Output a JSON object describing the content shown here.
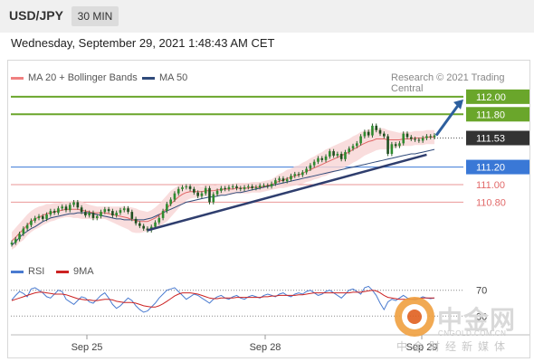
{
  "header": {
    "symbol": "USD/JPY",
    "timeframe": "30 MIN"
  },
  "datetime": "Wednesday, September 29, 2021 1:48:43 AM CET",
  "legend": {
    "ma20": "MA 20 + Bollinger Bands",
    "ma50": "MA 50",
    "credit": "Research © 2021 Trading Central"
  },
  "colors": {
    "green": "#6aa62b",
    "blue": "#3a78d6",
    "red": "#e26a6a",
    "dark": "#333333",
    "ma20": "#e06666",
    "ma50": "#2f4a7a",
    "band": "#f7d4d4",
    "rsi": "#4a7bd0",
    "rsi_ma": "#cc2222"
  },
  "watermark": {
    "brand": "中金网",
    "url": "CNGOLD.COM.CN",
    "sub": "中金财经新媒体"
  },
  "chart_data": [
    {
      "type": "line",
      "title": "",
      "y_range": [
        110.3,
        112.05
      ],
      "x_labels": [
        "Sep 25",
        "Sep 28",
        "Sep 29"
      ],
      "levels": [
        {
          "label": "112.00",
          "value": 112.0,
          "color": "green",
          "style": "box"
        },
        {
          "label": "111.80",
          "value": 111.8,
          "color": "green",
          "style": "box"
        },
        {
          "label": "111.53",
          "value": 111.53,
          "color": "dark",
          "style": "box"
        },
        {
          "label": "111.20",
          "value": 111.2,
          "color": "blue",
          "style": "box"
        },
        {
          "label": "111.00",
          "value": 111.0,
          "color": "red",
          "style": "text"
        },
        {
          "label": "110.80",
          "value": 110.8,
          "color": "red",
          "style": "text"
        }
      ],
      "trendline": {
        "from_index": 35,
        "from_value": 110.48,
        "to_index": 107,
        "to_value": 111.34
      },
      "forecast_arrow": {
        "from_value": 111.56,
        "to_value": 112.0
      },
      "series": [
        {
          "name": "Price",
          "values": [
            110.34,
            110.38,
            110.44,
            110.5,
            110.54,
            110.59,
            110.62,
            110.64,
            110.61,
            110.66,
            110.7,
            110.68,
            110.73,
            110.75,
            110.71,
            110.77,
            110.8,
            110.74,
            110.69,
            110.65,
            110.68,
            110.62,
            110.64,
            110.69,
            110.72,
            110.7,
            110.65,
            110.68,
            110.71,
            110.73,
            110.69,
            110.61,
            110.56,
            110.53,
            110.5,
            110.48,
            110.52,
            110.57,
            110.62,
            110.7,
            110.78,
            110.83,
            110.9,
            110.95,
            110.97,
            110.98,
            110.95,
            110.91,
            110.87,
            110.9,
            110.96,
            110.8,
            110.89,
            110.93,
            110.96,
            110.95,
            110.97,
            110.98,
            110.96,
            110.95,
            110.97,
            110.98,
            110.96,
            110.97,
            110.99,
            110.99,
            110.98,
            111.01,
            111.05,
            111.07,
            111.04,
            111.06,
            111.1,
            111.12,
            111.11,
            111.14,
            111.18,
            111.22,
            111.26,
            111.3,
            111.28,
            111.32,
            111.38,
            111.33,
            111.35,
            111.29,
            111.37,
            111.41,
            111.44,
            111.47,
            111.55,
            111.6,
            111.56,
            111.67,
            111.62,
            111.58,
            111.55,
            111.35,
            111.46,
            111.44,
            111.47,
            111.58,
            111.54,
            111.52,
            111.51,
            111.5,
            111.53,
            111.55,
            111.54,
            111.56
          ]
        },
        {
          "name": "MA 50",
          "values": [
            110.31,
            110.35,
            110.4,
            110.44,
            110.47,
            110.5,
            110.52,
            110.55,
            110.58,
            110.6,
            110.62,
            110.63,
            110.64,
            110.65,
            110.66,
            110.67,
            110.67,
            110.68,
            110.68,
            110.68,
            110.68,
            110.67,
            110.66,
            110.65,
            110.64,
            110.63,
            110.62,
            110.61,
            110.61,
            110.6,
            110.6,
            110.6,
            110.6,
            110.6,
            110.6,
            110.61,
            110.62,
            110.64,
            110.66,
            110.68,
            110.7,
            110.72,
            110.74,
            110.76,
            110.78,
            110.8,
            110.81,
            110.82,
            110.83,
            110.84,
            110.85,
            110.86,
            110.86,
            110.87,
            110.88,
            110.88,
            110.89,
            110.9,
            110.91,
            110.91,
            110.92,
            110.93,
            110.94,
            110.95,
            110.96,
            110.97,
            110.98,
            110.99,
            111.0,
            111.01,
            111.02,
            111.03,
            111.04,
            111.05,
            111.06,
            111.07,
            111.08,
            111.09,
            111.1,
            111.11,
            111.12,
            111.13,
            111.14,
            111.15,
            111.16,
            111.17,
            111.18,
            111.19,
            111.2,
            111.21,
            111.22,
            111.23,
            111.24,
            111.25,
            111.26,
            111.27,
            111.28,
            111.29,
            111.3,
            111.31,
            111.32,
            111.33,
            111.34,
            111.35,
            111.35,
            111.36,
            111.37,
            111.38,
            111.39,
            111.4
          ]
        },
        {
          "name": "MA 20",
          "values": [
            110.36,
            110.4,
            110.45,
            110.49,
            110.54,
            110.58,
            110.61,
            110.63,
            110.65,
            110.67,
            110.68,
            110.69,
            110.7,
            110.71,
            110.72,
            110.72,
            110.72,
            110.72,
            110.71,
            110.7,
            110.69,
            110.68,
            110.68,
            110.68,
            110.68,
            110.67,
            110.66,
            110.65,
            110.64,
            110.63,
            110.62,
            110.6,
            110.59,
            110.58,
            110.58,
            110.58,
            110.6,
            110.62,
            110.65,
            110.69,
            110.73,
            110.78,
            110.82,
            110.86,
            110.89,
            110.91,
            110.92,
            110.92,
            110.92,
            110.92,
            110.93,
            110.93,
            110.93,
            110.94,
            110.94,
            110.95,
            110.95,
            110.95,
            110.96,
            110.96,
            110.96,
            110.96,
            110.97,
            110.97,
            110.97,
            110.98,
            110.99,
            111.0,
            111.02,
            111.04,
            111.05,
            111.07,
            111.08,
            111.1,
            111.11,
            111.13,
            111.15,
            111.17,
            111.19,
            111.21,
            111.23,
            111.25,
            111.27,
            111.29,
            111.31,
            111.33,
            111.35,
            111.37,
            111.4,
            111.42,
            111.45,
            111.47,
            111.49,
            111.5,
            111.52,
            111.52,
            111.52,
            111.51,
            111.51,
            111.51,
            111.51,
            111.52,
            111.52,
            111.52,
            111.53,
            111.53,
            111.53,
            111.54,
            111.54,
            111.54
          ]
        },
        {
          "name": "Band width",
          "values": [
            0.1,
            0.11,
            0.11,
            0.12,
            0.12,
            0.12,
            0.12,
            0.12,
            0.11,
            0.11,
            0.1,
            0.1,
            0.09,
            0.09,
            0.09,
            0.09,
            0.1,
            0.1,
            0.1,
            0.09,
            0.08,
            0.08,
            0.07,
            0.07,
            0.07,
            0.08,
            0.09,
            0.1,
            0.11,
            0.12,
            0.13,
            0.14,
            0.14,
            0.13,
            0.12,
            0.11,
            0.11,
            0.12,
            0.13,
            0.14,
            0.15,
            0.15,
            0.14,
            0.13,
            0.11,
            0.09,
            0.08,
            0.07,
            0.07,
            0.06,
            0.06,
            0.06,
            0.06,
            0.06,
            0.06,
            0.06,
            0.06,
            0.06,
            0.06,
            0.06,
            0.06,
            0.06,
            0.06,
            0.06,
            0.06,
            0.06,
            0.06,
            0.06,
            0.07,
            0.08,
            0.09,
            0.1,
            0.1,
            0.11,
            0.11,
            0.12,
            0.12,
            0.13,
            0.13,
            0.14,
            0.14,
            0.15,
            0.15,
            0.15,
            0.15,
            0.15,
            0.15,
            0.15,
            0.15,
            0.15,
            0.15,
            0.14,
            0.14,
            0.13,
            0.13,
            0.12,
            0.12,
            0.11,
            0.1,
            0.09,
            0.08,
            0.08,
            0.08,
            0.08,
            0.08,
            0.08,
            0.08,
            0.08,
            0.08,
            0.08
          ]
        }
      ]
    },
    {
      "type": "line",
      "title": "",
      "y_range": [
        15,
        85
      ],
      "levels": [
        {
          "label": "70",
          "value": 70
        },
        {
          "label": "30",
          "value": 30
        }
      ],
      "series": [
        {
          "name": "RSI",
          "values": [
            55,
            62,
            68,
            65,
            60,
            72,
            74,
            70,
            66,
            60,
            58,
            64,
            70,
            68,
            56,
            52,
            48,
            54,
            60,
            58,
            52,
            50,
            56,
            62,
            66,
            58,
            48,
            42,
            46,
            52,
            58,
            54,
            46,
            40,
            36,
            38,
            44,
            50,
            58,
            64,
            70,
            72,
            74,
            68,
            62,
            56,
            60,
            64,
            62,
            58,
            54,
            50,
            56,
            60,
            62,
            58,
            56,
            60,
            62,
            58,
            56,
            60,
            62,
            60,
            58,
            62,
            64,
            62,
            60,
            64,
            66,
            62,
            60,
            64,
            66,
            64,
            68,
            70,
            66,
            62,
            64,
            68,
            70,
            66,
            62,
            58,
            64,
            70,
            72,
            68,
            64,
            74,
            76,
            70,
            62,
            50,
            40,
            52,
            56,
            54,
            58,
            62,
            58,
            56,
            55,
            57,
            60,
            58,
            57,
            58
          ]
        },
        {
          "name": "9MA",
          "values": [
            54,
            56,
            58,
            60,
            62,
            64,
            66,
            67,
            67,
            66,
            65,
            64,
            64,
            64,
            63,
            61,
            59,
            57,
            56,
            55,
            55,
            54,
            54,
            55,
            56,
            56,
            55,
            53,
            52,
            51,
            51,
            51,
            50,
            48,
            46,
            45,
            44,
            44,
            46,
            49,
            53,
            57,
            61,
            64,
            66,
            66,
            66,
            65,
            64,
            62,
            60,
            58,
            57,
            57,
            58,
            58,
            58,
            58,
            59,
            59,
            59,
            59,
            59,
            59,
            59,
            60,
            60,
            61,
            61,
            62,
            62,
            62,
            62,
            62,
            63,
            63,
            64,
            65,
            66,
            66,
            66,
            66,
            66,
            66,
            66,
            66,
            66,
            66,
            67,
            67,
            67,
            68,
            69,
            70,
            69,
            66,
            62,
            59,
            58,
            57,
            56,
            56,
            56,
            56,
            57,
            57,
            58,
            58,
            58,
            58
          ]
        }
      ]
    }
  ],
  "rsi_legend": {
    "rsi": "RSI",
    "ma": "9MA"
  }
}
